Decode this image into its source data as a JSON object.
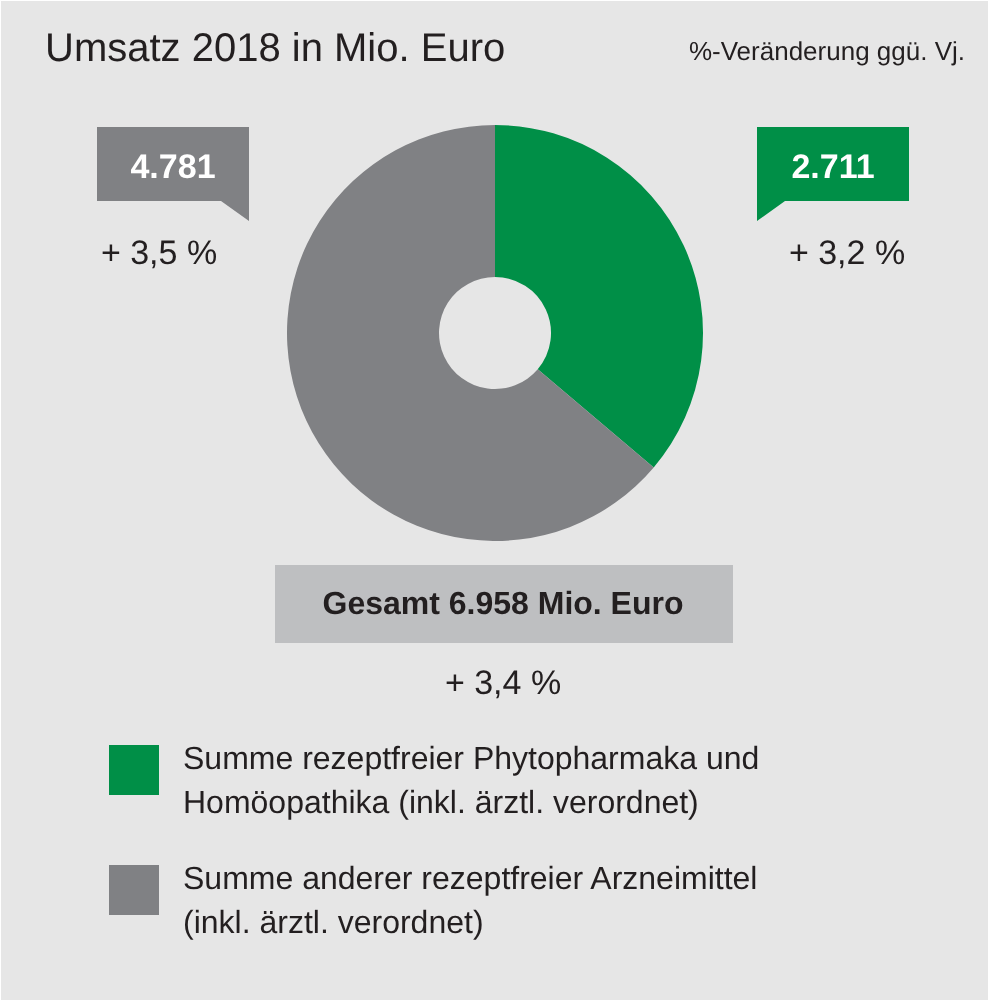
{
  "chart_data": {
    "type": "donut",
    "title": "Umsatz 2018 in Mio. Euro",
    "subtitle": "%-Veränderung ggü. Vj.",
    "categories": [
      "Summe rezeptfreier Phytopharmaka und Homöopathika (inkl. ärztl. verordnet)",
      "Summe anderer rezeptfreier Arzneimittel (inkl. ärztl. verordnet)"
    ],
    "values": [
      2711,
      4781
    ],
    "colors": [
      "#008f47",
      "#808184"
    ],
    "value_labels": [
      "2.711",
      "4.781"
    ],
    "annotations": [
      "+ 3,2 %",
      "+ 3,5 %",
      "Gesamt 6.958 Mio. Euro",
      "+ 3,4 %"
    ],
    "legend": "bottom"
  }
}
